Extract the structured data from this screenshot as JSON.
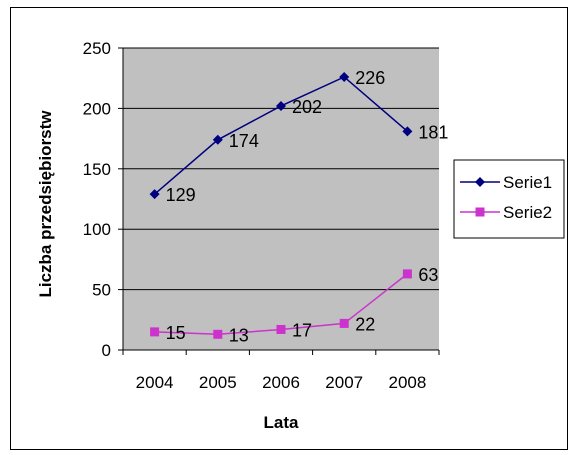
{
  "chart_data": {
    "type": "line",
    "categories": [
      "2004",
      "2005",
      "2006",
      "2007",
      "2008"
    ],
    "xlabel": "Lata",
    "ylabel": "Liczba przedsiębiorstw",
    "ylim": [
      0,
      250
    ],
    "yticks": [
      0,
      50,
      100,
      150,
      200,
      250
    ],
    "grid": true,
    "legend_position": "right",
    "plot_background": "#c0c0c0",
    "series": [
      {
        "name": "Serie1",
        "values": [
          129,
          174,
          202,
          226,
          181
        ],
        "color": "#000080",
        "marker": "diamond"
      },
      {
        "name": "Serie2",
        "values": [
          15,
          13,
          17,
          22,
          63
        ],
        "color": "#cc33cc",
        "marker": "square"
      }
    ]
  }
}
